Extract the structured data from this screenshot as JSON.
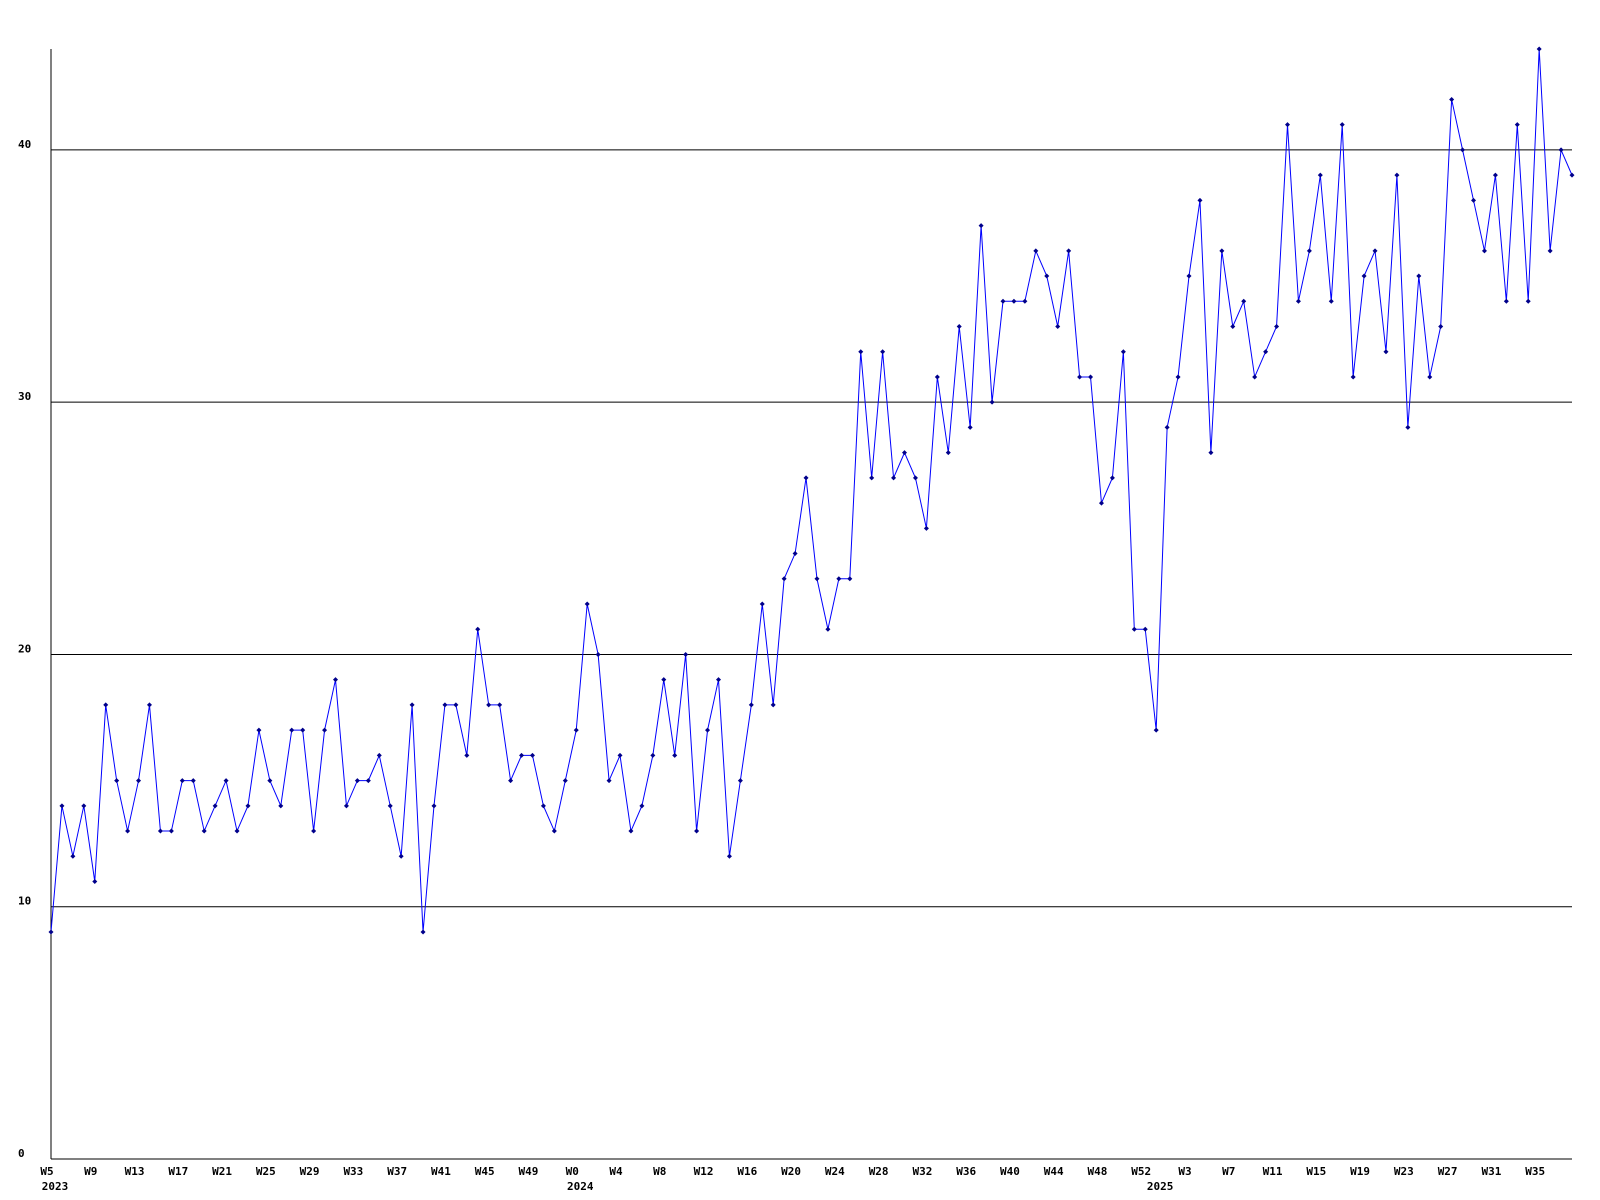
{
  "chart_data": {
    "type": "line",
    "categories": [
      "W5",
      null,
      null,
      null,
      "W9",
      null,
      null,
      null,
      "W13",
      null,
      null,
      null,
      "W17",
      null,
      null,
      null,
      "W21",
      null,
      null,
      null,
      "W25",
      null,
      null,
      null,
      "W29",
      null,
      null,
      null,
      "W33",
      null,
      null,
      null,
      "W37",
      null,
      null,
      null,
      "W41",
      null,
      null,
      null,
      "W45",
      null,
      null,
      null,
      "W49",
      null,
      null,
      null,
      "W0",
      null,
      null,
      null,
      "W4",
      null,
      null,
      null,
      "W8",
      null,
      null,
      null,
      "W12",
      null,
      null,
      null,
      "W16",
      null,
      null,
      null,
      "W20",
      null,
      null,
      null,
      "W24",
      null,
      null,
      null,
      "W28",
      null,
      null,
      null,
      "W32",
      null,
      null,
      null,
      "W36",
      null,
      null,
      null,
      "W40",
      null,
      null,
      null,
      "W44",
      null,
      null,
      null,
      "W48",
      null,
      null,
      null,
      "W52",
      null,
      null,
      null,
      "W3",
      null,
      null,
      null,
      "W7",
      null,
      null,
      null,
      "W11",
      null,
      null,
      null,
      "W15",
      null,
      null,
      null,
      "W19",
      null,
      null,
      null,
      "W23",
      null,
      null,
      null,
      "W27",
      null,
      null,
      null,
      "W31",
      null,
      null,
      null,
      "W35",
      null,
      null,
      null
    ],
    "year_labels": [
      "2023",
      null,
      null,
      null,
      null,
      null,
      null,
      null,
      null,
      null,
      null,
      null,
      null,
      null,
      null,
      null,
      null,
      null,
      null,
      null,
      null,
      null,
      null,
      null,
      null,
      null,
      null,
      null,
      null,
      null,
      null,
      null,
      null,
      null,
      null,
      null,
      null,
      null,
      null,
      null,
      null,
      null,
      null,
      null,
      null,
      null,
      null,
      null,
      "2024",
      null,
      null,
      null,
      null,
      null,
      null,
      null,
      null,
      null,
      null,
      null,
      null,
      null,
      null,
      null,
      null,
      null,
      null,
      null,
      null,
      null,
      null,
      null,
      null,
      null,
      null,
      null,
      null,
      null,
      null,
      null,
      null,
      null,
      null,
      null,
      null,
      null,
      null,
      null,
      null,
      null,
      null,
      null,
      null,
      null,
      null,
      null,
      null,
      null,
      null,
      null,
      null,
      "2025",
      null,
      null,
      null,
      null,
      null,
      null,
      null,
      null,
      null,
      null,
      null,
      null,
      null,
      null,
      null,
      null,
      null,
      null,
      null,
      null,
      null,
      null,
      null,
      null,
      null,
      null,
      null,
      null,
      null,
      null,
      null,
      null,
      null,
      null,
      null,
      null,
      null,
      null
    ],
    "series": [
      {
        "color": "#0000ff",
        "marker_color": "#00008b",
        "values": [
          9,
          14,
          12,
          14,
          11,
          18,
          15,
          13,
          15,
          18,
          13,
          13,
          15,
          15,
          13,
          14,
          15,
          13,
          14,
          17,
          15,
          14,
          17,
          17,
          13,
          17,
          19,
          14,
          15,
          15,
          16,
          14,
          12,
          18,
          9,
          14,
          18,
          18,
          16,
          21,
          18,
          18,
          15,
          16,
          16,
          14,
          13,
          15,
          17,
          22,
          20,
          15,
          16,
          13,
          14,
          16,
          19,
          16,
          20,
          13,
          17,
          19,
          12,
          15,
          18,
          22,
          18,
          23,
          24,
          27,
          23,
          21,
          23,
          23,
          32,
          27,
          32,
          27,
          28,
          27,
          25,
          31,
          28,
          33,
          29,
          37,
          30,
          34,
          34,
          34,
          36,
          35,
          33,
          36,
          31,
          31,
          26,
          27,
          32,
          21,
          21,
          17,
          29,
          31,
          35,
          38,
          28,
          36,
          33,
          34,
          31,
          32,
          33,
          41,
          34,
          36,
          39,
          34,
          41,
          31,
          35,
          36,
          32,
          39,
          29,
          35,
          31,
          33,
          42,
          40,
          38,
          36,
          39,
          34,
          41,
          34,
          44,
          36,
          40,
          39
        ]
      }
    ],
    "ylim": [
      0,
      44
    ],
    "yticks": [
      0,
      10,
      20,
      30,
      40
    ],
    "grid": true,
    "grid_color": "#000000"
  }
}
